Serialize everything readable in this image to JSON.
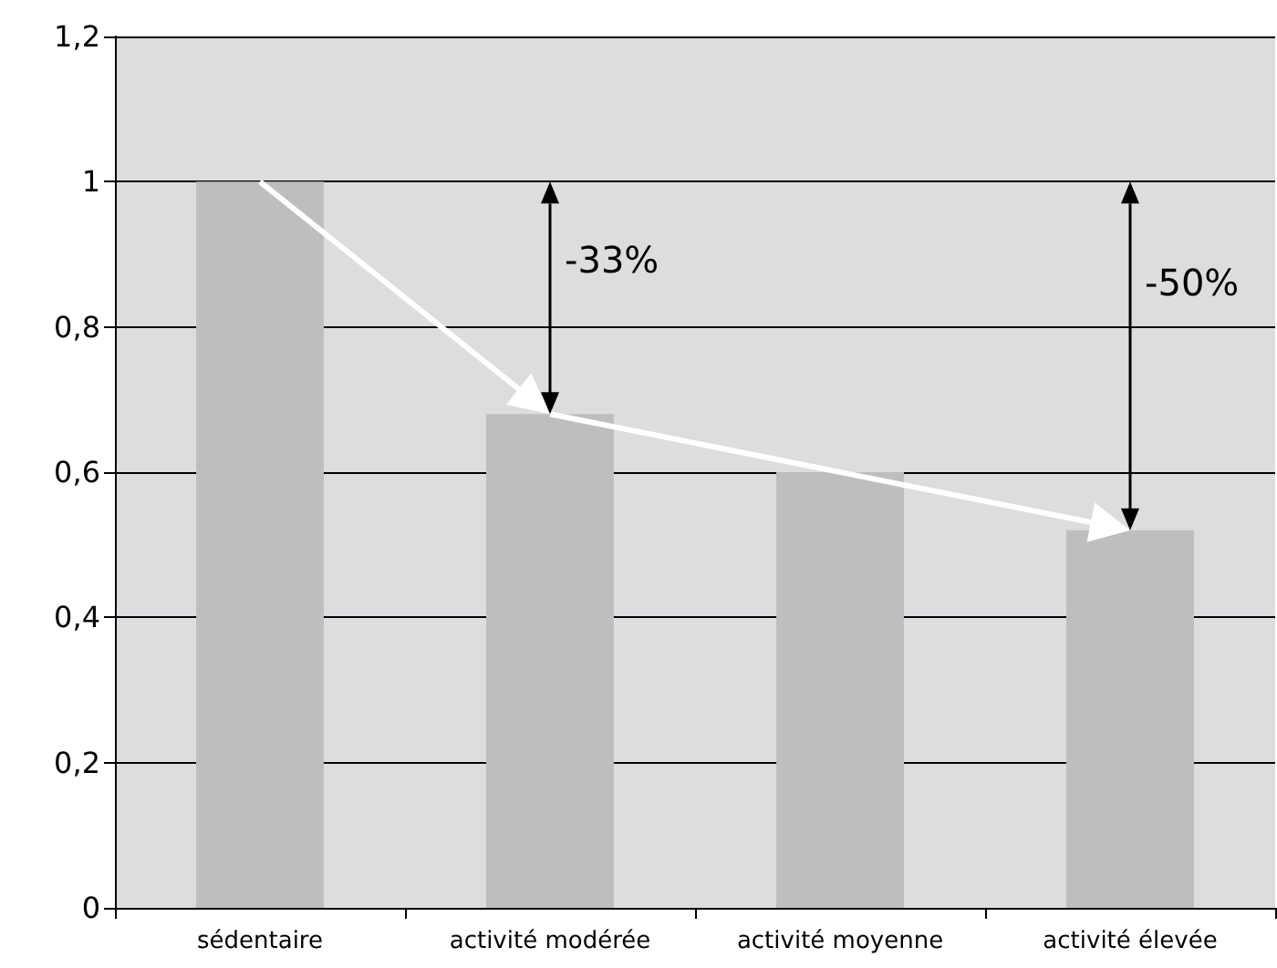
{
  "chart_data": {
    "type": "bar",
    "categories": [
      "sédentaire",
      "activité modérée",
      "activité moyenne",
      "activité élevée"
    ],
    "values": [
      1,
      0.68,
      0.6,
      0.52
    ],
    "color": "#bdbec0",
    "ylim": [
      0,
      1.2
    ],
    "yticks": [
      {
        "value": 0,
        "label": "0"
      },
      {
        "value": 0.2,
        "label": "0,2"
      },
      {
        "value": 0.4,
        "label": "0,4"
      },
      {
        "value": 0.6,
        "label": "0,6"
      },
      {
        "value": 0.8,
        "label": "0,8"
      },
      {
        "value": 1,
        "label": "1"
      },
      {
        "value": 1.2,
        "label": "1,2"
      }
    ],
    "grid": "y",
    "annotations": [
      "-33%",
      "-50%"
    ]
  }
}
